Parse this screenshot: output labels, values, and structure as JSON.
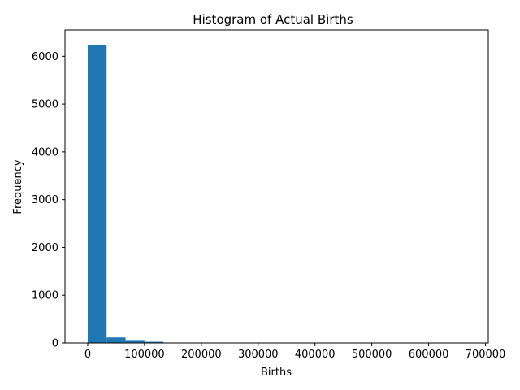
{
  "chart_data": {
    "type": "bar",
    "title": "Histogram of Actual Births",
    "xlabel": "Births",
    "ylabel": "Frequency",
    "xlim": [
      -40000,
      705000
    ],
    "ylim": [
      0,
      6550
    ],
    "x_ticks": [
      0,
      100000,
      200000,
      300000,
      400000,
      500000,
      600000,
      700000
    ],
    "x_tick_labels": [
      "0",
      "100000",
      "200000",
      "300000",
      "400000",
      "500000",
      "600000",
      "700000"
    ],
    "y_ticks": [
      0,
      1000,
      2000,
      3000,
      4000,
      5000,
      6000
    ],
    "y_tick_labels": [
      "0",
      "1000",
      "2000",
      "3000",
      "4000",
      "5000",
      "6000"
    ],
    "bar_color": "#1f77b4",
    "bins": [
      {
        "x0": 0,
        "x1": 33300,
        "count": 6230
      },
      {
        "x0": 33300,
        "x1": 66600,
        "count": 115
      },
      {
        "x0": 66600,
        "x1": 99900,
        "count": 45
      },
      {
        "x0": 99900,
        "x1": 133200,
        "count": 25
      },
      {
        "x0": 133200,
        "x1": 166500,
        "count": 4
      },
      {
        "x0": 166500,
        "x1": 199800,
        "count": 2
      },
      {
        "x0": 199800,
        "x1": 233100,
        "count": 1
      },
      {
        "x0": 233100,
        "x1": 266400,
        "count": 0
      },
      {
        "x0": 266400,
        "x1": 299700,
        "count": 0
      },
      {
        "x0": 299700,
        "x1": 333000,
        "count": 0
      },
      {
        "x0": 333000,
        "x1": 366300,
        "count": 0
      },
      {
        "x0": 366300,
        "x1": 399600,
        "count": 0
      },
      {
        "x0": 399600,
        "x1": 432900,
        "count": 0
      },
      {
        "x0": 432900,
        "x1": 466200,
        "count": 0
      },
      {
        "x0": 466200,
        "x1": 499500,
        "count": 0
      },
      {
        "x0": 499500,
        "x1": 532800,
        "count": 0
      },
      {
        "x0": 532800,
        "x1": 566100,
        "count": 0
      },
      {
        "x0": 566100,
        "x1": 599400,
        "count": 4
      },
      {
        "x0": 599400,
        "x1": 632700,
        "count": 6
      },
      {
        "x0": 632700,
        "x1": 666000,
        "count": 5
      }
    ],
    "grid": false,
    "legend": "none"
  }
}
